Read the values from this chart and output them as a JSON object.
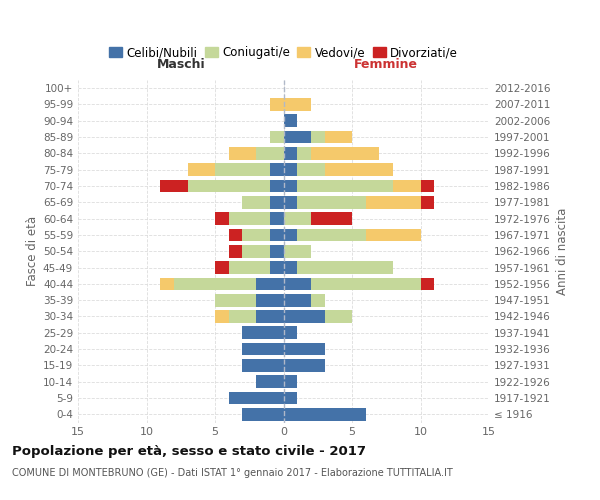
{
  "age_groups": [
    "100+",
    "95-99",
    "90-94",
    "85-89",
    "80-84",
    "75-79",
    "70-74",
    "65-69",
    "60-64",
    "55-59",
    "50-54",
    "45-49",
    "40-44",
    "35-39",
    "30-34",
    "25-29",
    "20-24",
    "15-19",
    "10-14",
    "5-9",
    "0-4"
  ],
  "birth_years": [
    "≤ 1916",
    "1917-1921",
    "1922-1926",
    "1927-1931",
    "1932-1936",
    "1937-1941",
    "1942-1946",
    "1947-1951",
    "1952-1956",
    "1957-1961",
    "1962-1966",
    "1967-1971",
    "1972-1976",
    "1977-1981",
    "1982-1986",
    "1987-1991",
    "1992-1996",
    "1997-2001",
    "2002-2006",
    "2007-2011",
    "2012-2016"
  ],
  "male": {
    "celibi": [
      0,
      0,
      0,
      0,
      0,
      1,
      1,
      1,
      1,
      1,
      1,
      1,
      2,
      2,
      2,
      3,
      3,
      3,
      2,
      4,
      3
    ],
    "coniugati": [
      0,
      0,
      0,
      1,
      2,
      4,
      6,
      2,
      3,
      2,
      2,
      3,
      6,
      3,
      2,
      0,
      0,
      0,
      0,
      0,
      0
    ],
    "vedovi": [
      0,
      1,
      0,
      0,
      2,
      2,
      0,
      0,
      0,
      0,
      0,
      0,
      1,
      0,
      1,
      0,
      0,
      0,
      0,
      0,
      0
    ],
    "divorziati": [
      0,
      0,
      0,
      0,
      0,
      0,
      2,
      0,
      1,
      1,
      1,
      1,
      0,
      0,
      0,
      0,
      0,
      0,
      0,
      0,
      0
    ]
  },
  "female": {
    "celibi": [
      0,
      0,
      1,
      2,
      1,
      1,
      1,
      1,
      0,
      1,
      0,
      1,
      2,
      2,
      3,
      1,
      3,
      3,
      1,
      1,
      6
    ],
    "coniugati": [
      0,
      0,
      0,
      1,
      1,
      2,
      7,
      5,
      2,
      5,
      2,
      7,
      8,
      1,
      2,
      0,
      0,
      0,
      0,
      0,
      0
    ],
    "vedovi": [
      0,
      2,
      0,
      2,
      5,
      5,
      2,
      4,
      0,
      4,
      0,
      0,
      0,
      0,
      0,
      0,
      0,
      0,
      0,
      0,
      0
    ],
    "divorziati": [
      0,
      0,
      0,
      0,
      0,
      0,
      1,
      1,
      3,
      0,
      0,
      0,
      1,
      0,
      0,
      0,
      0,
      0,
      0,
      0,
      0
    ]
  },
  "colors": {
    "celibi": "#4472a8",
    "coniugati": "#c5d89a",
    "vedovi": "#f5c96b",
    "divorziati": "#cc2222"
  },
  "title": "Popolazione per età, sesso e stato civile - 2017",
  "subtitle": "COMUNE DI MONTEBRUNO (GE) - Dati ISTAT 1° gennaio 2017 - Elaborazione TUTTITALIA.IT",
  "ylabel_left": "Fasce di età",
  "ylabel_right": "Anni di nascita",
  "xlabel_male": "Maschi",
  "xlabel_female": "Femmine",
  "xlim": 15,
  "background_color": "#ffffff",
  "grid_color": "#dddddd",
  "legend_labels": [
    "Celibi/Nubili",
    "Coniugati/e",
    "Vedovi/e",
    "Divorziati/e"
  ]
}
